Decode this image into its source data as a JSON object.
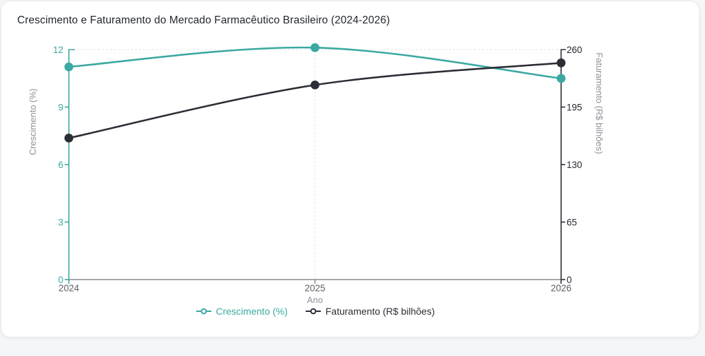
{
  "page": {
    "background_color": "#f5f6f8",
    "card_background_color": "#ffffff"
  },
  "header": {
    "title": "Crescimento e Faturamento do Mercado Farmacêutico Brasileiro (2024-2026)"
  },
  "chart_data": {
    "type": "line",
    "title": "Crescimento e Faturamento do Mercado Farmacêutico Brasileiro (2024-2026)",
    "xlabel": "Ano",
    "ylabel_left": "Crescimento (%)",
    "ylabel_right": "Faturamento (R$ bilhões)",
    "categories": [
      "2024",
      "2025",
      "2026"
    ],
    "series": [
      {
        "name": "Crescimento (%)",
        "axis": "left",
        "color": "#3aa9a1",
        "values": [
          11.1,
          12.1,
          10.5
        ]
      },
      {
        "name": "Faturamento (R$ bilhões)",
        "axis": "right",
        "color": "#2b2e35",
        "values": [
          160,
          220,
          245
        ]
      }
    ],
    "left_axis": {
      "min": 0,
      "max": 12,
      "ticks": [
        0,
        3,
        6,
        9,
        12
      ],
      "color": "#3aa9a1",
      "tick_label_color": "#3aa9a1"
    },
    "right_axis": {
      "min": 0,
      "max": 260,
      "ticks": [
        0,
        65,
        130,
        195,
        260
      ],
      "color": "#2b2e35",
      "tick_label_color": "#23272e"
    },
    "x_axis": {
      "color": "#70757c",
      "tick_label_color": "#5b6066"
    },
    "axis_title_color": "#8d929a",
    "grid": {
      "dashed_top_line": true,
      "dashed_vertical_at": "2025",
      "color": "#e4e6e9"
    },
    "legend_position": "bottom"
  },
  "legend": {
    "items": [
      {
        "label": "Crescimento (%)"
      },
      {
        "label": "Faturamento (R$ bilhões)"
      }
    ]
  }
}
